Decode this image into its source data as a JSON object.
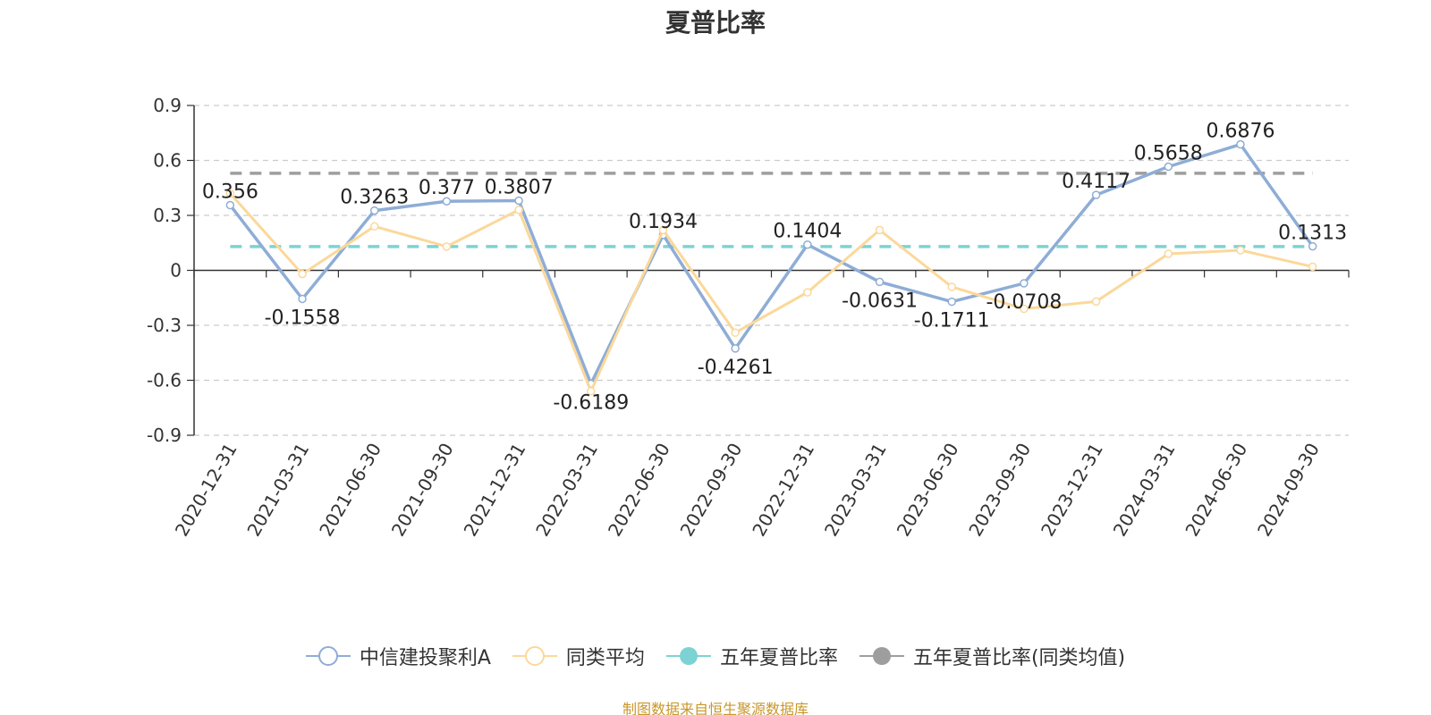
{
  "chart_data": {
    "type": "line",
    "title": "夏普比率",
    "categories": [
      "2020-12-31",
      "2021-03-31",
      "2021-06-30",
      "2021-09-30",
      "2021-12-31",
      "2022-03-31",
      "2022-06-30",
      "2022-09-30",
      "2022-12-31",
      "2023-03-31",
      "2023-06-30",
      "2023-09-30",
      "2023-12-31",
      "2024-03-31",
      "2024-06-30",
      "2024-09-30"
    ],
    "ylim": [
      -0.9,
      0.9
    ],
    "yticks": [
      "0.9",
      "0.6",
      "0.3",
      "0",
      "-0.3",
      "-0.6",
      "-0.9"
    ],
    "grid": true,
    "legend_position": "bottom",
    "series": [
      {
        "name": "中信建投聚利A",
        "color": "#8eadd6",
        "values": [
          0.356,
          -0.1558,
          0.3263,
          0.377,
          0.3807,
          -0.6189,
          0.1934,
          -0.4261,
          0.1404,
          -0.0631,
          -0.1711,
          -0.0708,
          0.4117,
          0.5658,
          0.6876,
          0.1313
        ],
        "labels": [
          "0.356",
          "-0.1558",
          "0.3263",
          "0.377",
          "0.3807",
          "-0.6189",
          "0.1934",
          "-0.4261",
          "0.1404",
          "-0.0631",
          "-0.1711",
          "-0.0708",
          "0.4117",
          "0.5658",
          "0.6876",
          "0.1313"
        ]
      },
      {
        "name": "同类平均",
        "color": "#fbd89a",
        "values": [
          0.42,
          -0.02,
          0.24,
          0.13,
          0.33,
          -0.66,
          0.22,
          -0.34,
          -0.12,
          0.22,
          -0.09,
          -0.21,
          -0.17,
          0.09,
          0.11,
          0.02
        ]
      },
      {
        "name": "五年夏普比率",
        "color": "#7dd3d3",
        "value": 0.13,
        "style": "dashed"
      },
      {
        "name": "五年夏普比率(同类均值)",
        "color": "#9e9e9e",
        "value": 0.53,
        "style": "dashed"
      }
    ]
  },
  "source_text": "制图数据来自恒生聚源数据库"
}
